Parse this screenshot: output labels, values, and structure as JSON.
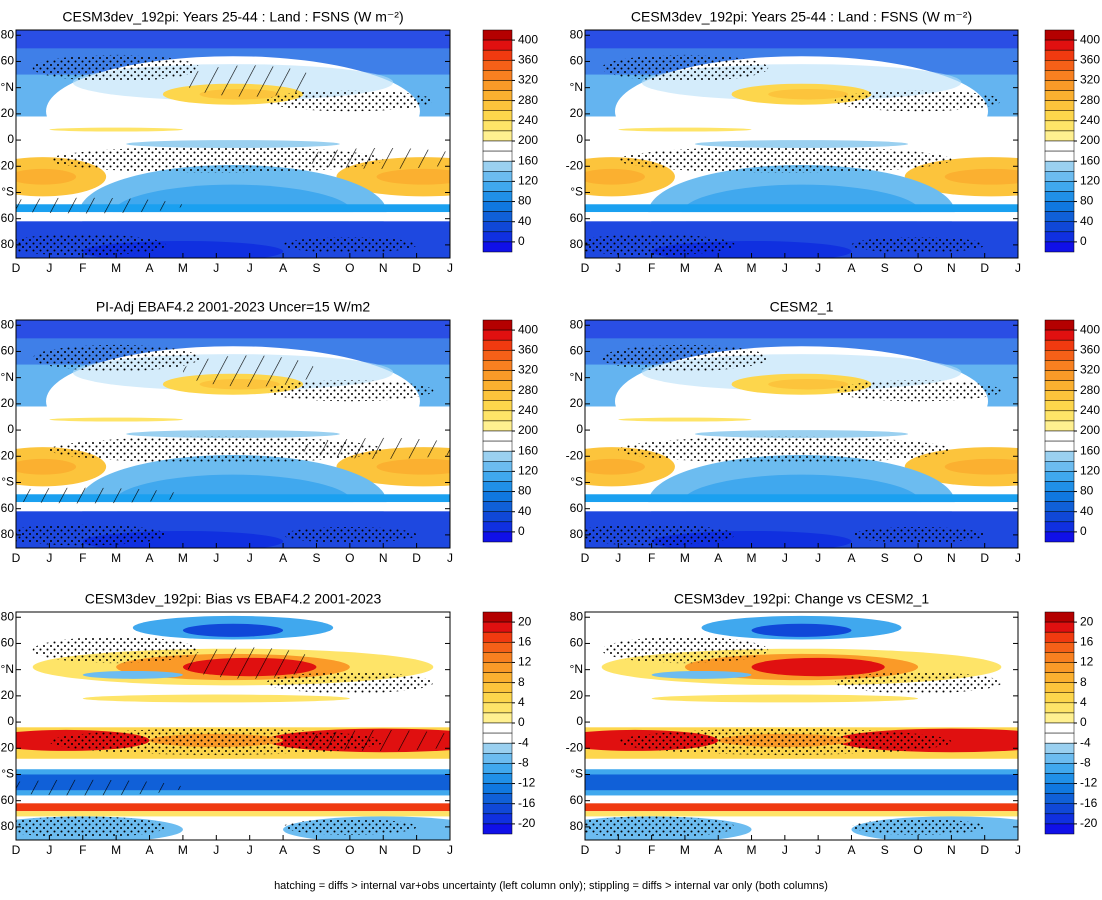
{
  "chart_data": [
    {
      "type": "contour",
      "title": "CESM3dev_192pi: Years 25-44 : Land : FSNS (W m⁻²)",
      "categories": [
        "D",
        "J",
        "F",
        "M",
        "A",
        "M",
        "J",
        "J",
        "A",
        "S",
        "O",
        "N",
        "D",
        "J"
      ],
      "ylim": [
        -90,
        84
      ],
      "yticks": [
        80,
        60,
        {
          "value": 40,
          "label": "°N"
        },
        20,
        0,
        -20,
        {
          "value": -40,
          "label": "°S"
        },
        {
          "value": -60,
          "label": "60"
        },
        {
          "value": -80,
          "label": "80"
        }
      ],
      "colorbar": {
        "ticks": [
          400,
          360,
          320,
          280,
          240,
          200,
          160,
          120,
          80,
          40,
          0
        ],
        "colors": [
          "#b40000",
          "#e01010",
          "#f03a10",
          "#f56018",
          "#f88020",
          "#fa9a28",
          "#fbb030",
          "#fcc43c",
          "#fdd64c",
          "#fee468",
          "#fff090",
          "#ffffff",
          "#ffffff",
          "#9ad0f0",
          "#6cbcf0",
          "#40a8ee",
          "#2090e8",
          "#1078e0",
          "#1060d8",
          "#1048d8",
          "#1030e0",
          "#1010e8"
        ]
      }
    },
    {
      "type": "contour",
      "title": "CESM3dev_192pi: Years 25-44 : Land : FSNS (W m⁻²)",
      "categories": [
        "D",
        "J",
        "F",
        "M",
        "A",
        "M",
        "J",
        "J",
        "A",
        "S",
        "O",
        "N",
        "D",
        "J"
      ],
      "ylim": [
        -90,
        84
      ],
      "yticks": [
        80,
        60,
        {
          "value": 40,
          "label": "°N"
        },
        20,
        0,
        -20,
        {
          "value": -40,
          "label": "°S"
        },
        {
          "value": -60,
          "label": "60"
        },
        {
          "value": -80,
          "label": "80"
        }
      ],
      "colorbar": {
        "ticks": [
          400,
          360,
          320,
          280,
          240,
          200,
          160,
          120,
          80,
          40,
          0
        ],
        "colors": [
          "#b40000",
          "#e01010",
          "#f03a10",
          "#f56018",
          "#f88020",
          "#fa9a28",
          "#fbb030",
          "#fcc43c",
          "#fdd64c",
          "#fee468",
          "#fff090",
          "#ffffff",
          "#ffffff",
          "#9ad0f0",
          "#6cbcf0",
          "#40a8ee",
          "#2090e8",
          "#1078e0",
          "#1060d8",
          "#1048d8",
          "#1030e0",
          "#1010e8"
        ]
      }
    },
    {
      "type": "contour",
      "title": "PI-Adj EBAF4.2 2001-2023 Uncer=15 W/m2",
      "categories": [
        "D",
        "J",
        "F",
        "M",
        "A",
        "M",
        "J",
        "J",
        "A",
        "S",
        "O",
        "N",
        "D",
        "J"
      ],
      "ylim": [
        -90,
        84
      ],
      "yticks": [
        80,
        60,
        {
          "value": 40,
          "label": "°N"
        },
        20,
        0,
        -20,
        {
          "value": -40,
          "label": "°S"
        },
        {
          "value": -60,
          "label": "60"
        },
        {
          "value": -80,
          "label": "80"
        }
      ],
      "colorbar": {
        "ticks": [
          400,
          360,
          320,
          280,
          240,
          200,
          160,
          120,
          80,
          40,
          0
        ],
        "colors": [
          "#b40000",
          "#e01010",
          "#f03a10",
          "#f56018",
          "#f88020",
          "#fa9a28",
          "#fbb030",
          "#fcc43c",
          "#fdd64c",
          "#fee468",
          "#fff090",
          "#ffffff",
          "#ffffff",
          "#9ad0f0",
          "#6cbcf0",
          "#40a8ee",
          "#2090e8",
          "#1078e0",
          "#1060d8",
          "#1048d8",
          "#1030e0",
          "#1010e8"
        ]
      }
    },
    {
      "type": "contour",
      "title": "CESM2_1",
      "categories": [
        "D",
        "J",
        "F",
        "M",
        "A",
        "M",
        "J",
        "J",
        "A",
        "S",
        "O",
        "N",
        "D",
        "J"
      ],
      "ylim": [
        -90,
        84
      ],
      "yticks": [
        80,
        60,
        {
          "value": 40,
          "label": "°N"
        },
        20,
        0,
        -20,
        {
          "value": -40,
          "label": "°S"
        },
        {
          "value": -60,
          "label": "60"
        },
        {
          "value": -80,
          "label": "80"
        }
      ],
      "colorbar": {
        "ticks": [
          400,
          360,
          320,
          280,
          240,
          200,
          160,
          120,
          80,
          40,
          0
        ],
        "colors": [
          "#b40000",
          "#e01010",
          "#f03a10",
          "#f56018",
          "#f88020",
          "#fa9a28",
          "#fbb030",
          "#fcc43c",
          "#fdd64c",
          "#fee468",
          "#fff090",
          "#ffffff",
          "#ffffff",
          "#9ad0f0",
          "#6cbcf0",
          "#40a8ee",
          "#2090e8",
          "#1078e0",
          "#1060d8",
          "#1048d8",
          "#1030e0",
          "#1010e8"
        ]
      }
    },
    {
      "type": "contour",
      "title": "CESM3dev_192pi: Bias vs EBAF4.2 2001-2023",
      "categories": [
        "D",
        "J",
        "F",
        "M",
        "A",
        "M",
        "J",
        "J",
        "A",
        "S",
        "O",
        "N",
        "D",
        "J"
      ],
      "ylim": [
        -90,
        84
      ],
      "yticks": [
        80,
        60,
        {
          "value": 40,
          "label": "°N"
        },
        20,
        0,
        -20,
        {
          "value": -40,
          "label": "°S"
        },
        {
          "value": -60,
          "label": "60"
        },
        {
          "value": -80,
          "label": "80"
        }
      ],
      "colorbar": {
        "ticks": [
          20,
          16,
          12,
          8,
          4,
          0,
          -4,
          -8,
          -12,
          -16,
          -20
        ],
        "colors": [
          "#b40000",
          "#e01010",
          "#f03a10",
          "#f56018",
          "#f88020",
          "#fa9a28",
          "#fbb030",
          "#fcc43c",
          "#fdd64c",
          "#fee468",
          "#fff090",
          "#ffffff",
          "#ffffff",
          "#9ad0f0",
          "#6cbcf0",
          "#40a8ee",
          "#2090e8",
          "#1078e0",
          "#1060d8",
          "#1048d8",
          "#1030e0",
          "#1010e8"
        ]
      }
    },
    {
      "type": "contour",
      "title": "CESM3dev_192pi: Change vs CESM2_1",
      "categories": [
        "D",
        "J",
        "F",
        "M",
        "A",
        "M",
        "J",
        "J",
        "A",
        "S",
        "O",
        "N",
        "D",
        "J"
      ],
      "ylim": [
        -90,
        84
      ],
      "yticks": [
        80,
        60,
        {
          "value": 40,
          "label": "°N"
        },
        20,
        0,
        -20,
        {
          "value": -40,
          "label": "°S"
        },
        {
          "value": -60,
          "label": "60"
        },
        {
          "value": -80,
          "label": "80"
        }
      ],
      "colorbar": {
        "ticks": [
          20,
          16,
          12,
          8,
          4,
          0,
          -4,
          -8,
          -12,
          -16,
          -20
        ],
        "colors": [
          "#b40000",
          "#e01010",
          "#f03a10",
          "#f56018",
          "#f88020",
          "#fa9a28",
          "#fbb030",
          "#fcc43c",
          "#fdd64c",
          "#fee468",
          "#fff090",
          "#ffffff",
          "#ffffff",
          "#9ad0f0",
          "#6cbcf0",
          "#40a8ee",
          "#2090e8",
          "#1078e0",
          "#1060d8",
          "#1048d8",
          "#1030e0",
          "#1010e8"
        ]
      }
    }
  ],
  "caption": "hatching = diffs > internal var+obs uncertainty (left column only); stippling = diffs > internal var only (both columns)"
}
